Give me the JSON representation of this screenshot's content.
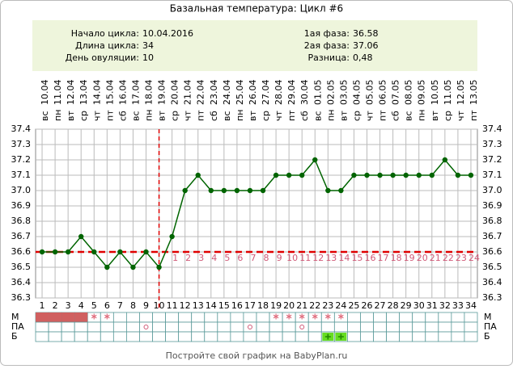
{
  "chart_data": {
    "type": "line",
    "title": "Базальная температура: Цикл #6",
    "info": [
      {
        "label": "Начало цикла:",
        "value": "10.04.2016"
      },
      {
        "label": "Длина цикла:",
        "value": "34"
      },
      {
        "label": "День овуляции:",
        "value": "10"
      },
      {
        "label": "1ая фаза:",
        "value": "36.58"
      },
      {
        "label": "2ая фаза:",
        "value": "37.06"
      },
      {
        "label": "Разница:",
        "value": "0,48"
      }
    ],
    "weekdays": [
      "вс",
      "пн",
      "вт",
      "ср",
      "чт",
      "пт",
      "сб",
      "вс",
      "пн",
      "вт",
      "ср",
      "чт",
      "пт",
      "сб",
      "вс",
      "пн",
      "вт",
      "ср",
      "чт",
      "пт",
      "сб",
      "вс",
      "пн",
      "вт",
      "ср",
      "чт",
      "пт",
      "сб",
      "вс",
      "пн",
      "вт",
      "ср",
      "чт",
      "пт"
    ],
    "dates": [
      "10.04",
      "11.04",
      "12.04",
      "13.04",
      "14.04",
      "15.04",
      "16.04",
      "17.04",
      "18.04",
      "19.04",
      "20.04",
      "21.04",
      "22.04",
      "23.04",
      "24.04",
      "25.04",
      "26.04",
      "27.04",
      "28.04",
      "29.04",
      "30.04",
      "01.05",
      "02.05",
      "03.05",
      "04.05",
      "05.05",
      "06.05",
      "07.05",
      "08.05",
      "09.05",
      "10.05",
      "11.05",
      "12.05",
      "13.05"
    ],
    "categories": [
      1,
      2,
      3,
      4,
      5,
      6,
      7,
      8,
      9,
      10,
      11,
      12,
      13,
      14,
      15,
      16,
      17,
      18,
      19,
      20,
      21,
      22,
      23,
      24,
      25,
      26,
      27,
      28,
      29,
      30,
      31,
      32,
      33,
      34
    ],
    "phase_days": [
      null,
      null,
      null,
      null,
      null,
      null,
      null,
      null,
      null,
      null,
      1,
      2,
      3,
      4,
      5,
      6,
      7,
      8,
      9,
      10,
      11,
      12,
      13,
      14,
      15,
      16,
      17,
      18,
      19,
      20,
      21,
      22,
      23,
      24
    ],
    "series": [
      {
        "name": "Температура",
        "color": "#006400",
        "values": [
          36.6,
          36.6,
          36.6,
          36.7,
          36.6,
          36.5,
          36.6,
          36.5,
          36.6,
          36.5,
          36.7,
          37.0,
          37.1,
          37.0,
          37.0,
          37.0,
          37.0,
          37.0,
          37.1,
          37.1,
          37.1,
          37.2,
          37.0,
          37.0,
          37.1,
          37.1,
          37.1,
          37.1,
          37.1,
          37.1,
          37.1,
          37.2,
          37.1,
          37.1
        ]
      }
    ],
    "coverline": 36.6,
    "ovulation_day": 10,
    "ylim": [
      36.3,
      37.4
    ],
    "yticks": [
      {
        "value": 36.3,
        "label": "36.3"
      },
      {
        "value": 36.4,
        "label": "36.4"
      },
      {
        "value": 36.5,
        "label": "36.5"
      },
      {
        "value": 36.6,
        "label": "36.6"
      },
      {
        "value": 36.7,
        "label": "36.7"
      },
      {
        "value": 36.8,
        "label": "36.8"
      },
      {
        "value": 36.9,
        "label": "36.9"
      },
      {
        "value": 37.0,
        "label": "37.0"
      },
      {
        "value": 37.1,
        "label": "37.1"
      },
      {
        "value": 37.2,
        "label": "37.2"
      },
      {
        "value": 37.3,
        "label": "37.3"
      },
      {
        "value": 37.4,
        "label": "37.4"
      }
    ],
    "grid": true,
    "rows": [
      {
        "label": "М",
        "filled": [
          1,
          2,
          3,
          4
        ],
        "stars": [
          5,
          6,
          19,
          20,
          21,
          22,
          23,
          24
        ]
      },
      {
        "label": "ПА",
        "circles": [
          9,
          17,
          21
        ]
      },
      {
        "label": "Б",
        "plus": [
          23,
          24
        ]
      }
    ],
    "footer": "Постройте свой график на BabyPlan.ru"
  }
}
